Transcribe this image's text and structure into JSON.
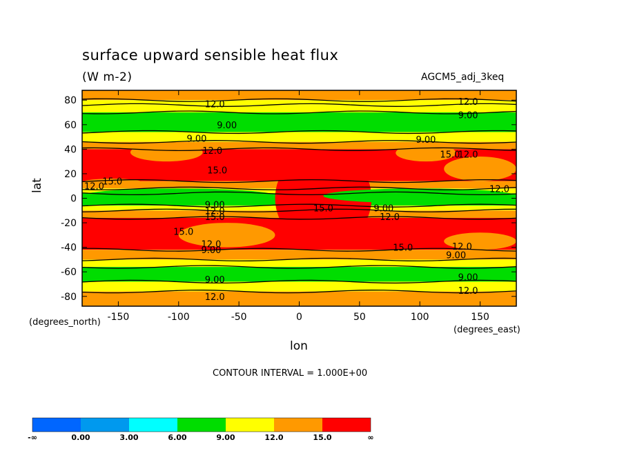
{
  "title": "surface upward sensible heat flux",
  "units": "(W m-2)",
  "run_label": "AGCM5_adj_3keq",
  "contour_interval_text": "CONTOUR INTERVAL = 1.000E+00",
  "colors": {
    "lt0": "#0066ff",
    "0_3": "#0099ee",
    "3_6": "#00ffff",
    "6_9": "#00dd00",
    "9_12": "#ffff00",
    "12_15": "#ff9900",
    "gt15": "#ff0000"
  },
  "chart_data": {
    "type": "heatmap",
    "title": "surface upward sensible heat flux",
    "xlabel": "lon",
    "ylabel": "lat",
    "x_unit_label": "(degrees_east)",
    "y_unit_label": "(degrees_north)",
    "xlim": [
      -180,
      180
    ],
    "ylim": [
      -88,
      88
    ],
    "x_ticks": [
      -150,
      -100,
      -50,
      0,
      50,
      100,
      150
    ],
    "x_tick_labels": [
      "-150",
      "-100",
      "-50",
      "0",
      "50",
      "100",
      "150"
    ],
    "y_ticks": [
      80,
      60,
      40,
      20,
      0,
      -20,
      -40,
      -60,
      -80
    ],
    "y_tick_labels": [
      "80",
      "60",
      "40",
      "20",
      "0",
      "-20",
      "-40",
      "-60",
      "-80"
    ],
    "contour_levels": [
      9,
      12,
      15
    ],
    "bands": [
      {
        "lat": [
          80,
          88
        ],
        "level": "12_15"
      },
      {
        "lat": [
          76,
          80
        ],
        "level": "9_12"
      },
      {
        "lat": [
          70,
          76
        ],
        "level": "9_12"
      },
      {
        "lat": [
          54,
          70
        ],
        "level": "6_9"
      },
      {
        "lat": [
          46,
          54
        ],
        "level": "9_12"
      },
      {
        "lat": [
          40,
          46
        ],
        "level": "12_15"
      },
      {
        "lat": [
          14,
          40
        ],
        "level": "gt15"
      },
      {
        "lat": [
          8,
          14
        ],
        "level": "12_15"
      },
      {
        "lat": [
          4,
          8
        ],
        "level": "9_12"
      },
      {
        "lat": [
          -6,
          4
        ],
        "level": "6_9"
      },
      {
        "lat": [
          -10,
          -6
        ],
        "level": "9_12"
      },
      {
        "lat": [
          -16,
          -10
        ],
        "level": "12_15"
      },
      {
        "lat": [
          -42,
          -16
        ],
        "level": "gt15"
      },
      {
        "lat": [
          -50,
          -42
        ],
        "level": "12_15"
      },
      {
        "lat": [
          -56,
          -50
        ],
        "level": "9_12"
      },
      {
        "lat": [
          -68,
          -56
        ],
        "level": "6_9"
      },
      {
        "lat": [
          -76,
          -68
        ],
        "level": "9_12"
      },
      {
        "lat": [
          -88,
          -76
        ],
        "level": "12_15"
      }
    ],
    "regions": [
      {
        "lon": [
          -140,
          -80
        ],
        "lat": [
          30,
          45
        ],
        "level": "12_15"
      },
      {
        "lon": [
          -180,
          -130
        ],
        "lat": [
          10,
          16
        ],
        "level": "12_15"
      },
      {
        "lon": [
          -100,
          -20
        ],
        "lat": [
          -40,
          -20
        ],
        "level": "12_15"
      },
      {
        "lon": [
          120,
          180
        ],
        "lat": [
          14,
          34
        ],
        "level": "12_15"
      },
      {
        "lon": [
          120,
          180
        ],
        "lat": [
          -42,
          -28
        ],
        "level": "12_15"
      },
      {
        "lon": [
          -20,
          60
        ],
        "lat": [
          -40,
          40
        ],
        "level": "gt15"
      },
      {
        "lon": [
          20,
          180
        ],
        "lat": [
          -4,
          8
        ],
        "level": "6_9"
      },
      {
        "lon": [
          -180,
          -20
        ],
        "lat": [
          -4,
          8
        ],
        "level": "6_9"
      },
      {
        "lon": [
          80,
          130
        ],
        "lat": [
          30,
          44
        ],
        "level": "12_15"
      }
    ],
    "contour_labels": [
      {
        "text": "12.0",
        "lon": -70,
        "lat": 77
      },
      {
        "text": "9.00",
        "lon": -60,
        "lat": 60
      },
      {
        "text": "9.00",
        "lon": -85,
        "lat": 49
      },
      {
        "text": "12.0",
        "lon": -72,
        "lat": 39
      },
      {
        "text": "15.0",
        "lon": -68,
        "lat": 23
      },
      {
        "text": "12.0",
        "lon": -170,
        "lat": 10
      },
      {
        "text": "15.0",
        "lon": -155,
        "lat": 14
      },
      {
        "text": "9.00",
        "lon": -70,
        "lat": -5
      },
      {
        "text": "12.0",
        "lon": -70,
        "lat": -10
      },
      {
        "text": "15.0",
        "lon": -70,
        "lat": -15
      },
      {
        "text": "15.0",
        "lon": -96,
        "lat": -27
      },
      {
        "text": "12.0",
        "lon": -73,
        "lat": -37
      },
      {
        "text": "9.00",
        "lon": -73,
        "lat": -42
      },
      {
        "text": "9.00",
        "lon": -70,
        "lat": -66
      },
      {
        "text": "12.0",
        "lon": -70,
        "lat": -80
      },
      {
        "text": "12.0",
        "lon": 140,
        "lat": 79
      },
      {
        "text": "9.00",
        "lon": 140,
        "lat": 68
      },
      {
        "text": "9.00",
        "lon": 105,
        "lat": 48
      },
      {
        "text": "15.0",
        "lon": 125,
        "lat": 36
      },
      {
        "text": "12.0",
        "lon": 140,
        "lat": 36
      },
      {
        "text": "12.0",
        "lon": 166,
        "lat": 8
      },
      {
        "text": "15.0",
        "lon": 20,
        "lat": -8
      },
      {
        "text": "9.00",
        "lon": 70,
        "lat": -8
      },
      {
        "text": "12.0",
        "lon": 75,
        "lat": -15
      },
      {
        "text": "15.0",
        "lon": 86,
        "lat": -40
      },
      {
        "text": "12.0",
        "lon": 135,
        "lat": -39
      },
      {
        "text": "9.00",
        "lon": 130,
        "lat": -46
      },
      {
        "text": "9.00",
        "lon": 140,
        "lat": -64
      },
      {
        "text": "12.0",
        "lon": 140,
        "lat": -75
      }
    ]
  },
  "colorbar": {
    "levels": [
      "lt0",
      "0_3",
      "3_6",
      "6_9",
      "9_12",
      "12_15",
      "gt15"
    ],
    "labels": [
      "-∞",
      "0.00",
      "3.00",
      "6.00",
      "9.00",
      "12.0",
      "15.0",
      "∞"
    ]
  }
}
